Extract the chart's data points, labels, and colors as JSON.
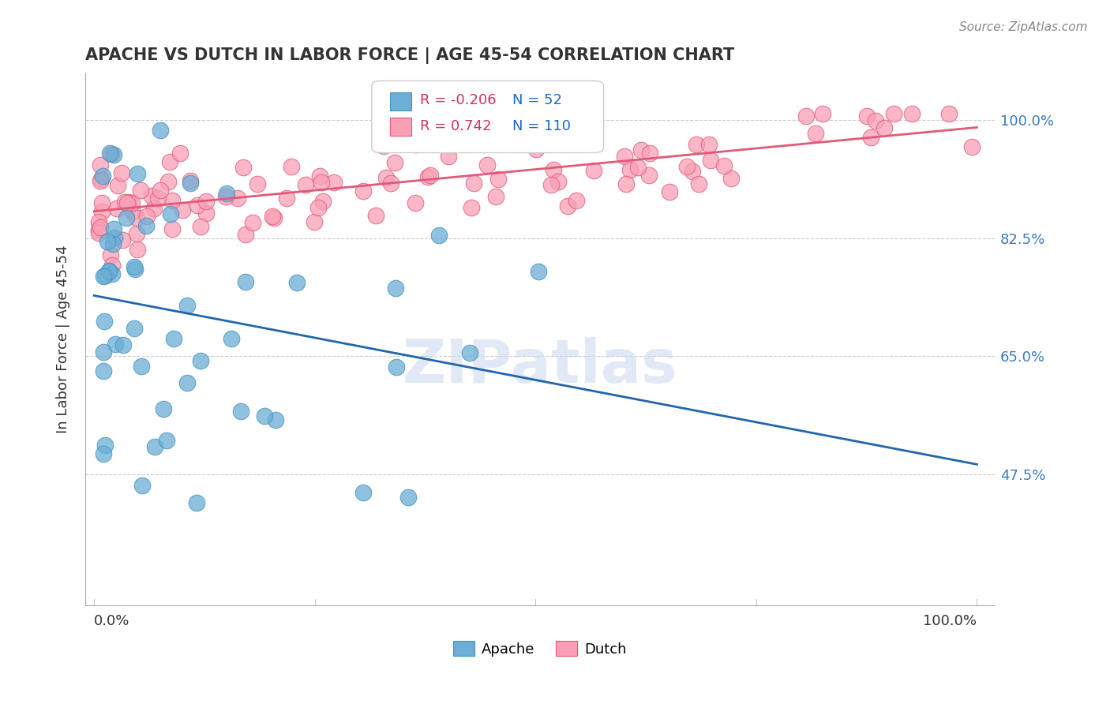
{
  "title": "APACHE VS DUTCH IN LABOR FORCE | AGE 45-54 CORRELATION CHART",
  "source_text": "Source: ZipAtlas.com",
  "ylabel": "In Labor Force | Age 45-54",
  "ytick_labels": [
    "100.0%",
    "82.5%",
    "65.0%",
    "47.5%"
  ],
  "ytick_values": [
    1.0,
    0.825,
    0.65,
    0.475
  ],
  "xlim": [
    0.0,
    1.0
  ],
  "ylim": [
    0.28,
    1.07
  ],
  "legend_r_apache": "-0.206",
  "legend_n_apache": "52",
  "legend_r_dutch": "0.742",
  "legend_n_dutch": "110",
  "apache_color": "#6baed6",
  "apache_edge_color": "#4393c3",
  "dutch_color": "#fa9fb5",
  "dutch_edge_color": "#e05a7a",
  "apache_line_color": "#2166ac",
  "dutch_line_color": "#e05a7a",
  "watermark": "ZIPatlas",
  "background_color": "#ffffff",
  "grid_color": "#cccccc"
}
